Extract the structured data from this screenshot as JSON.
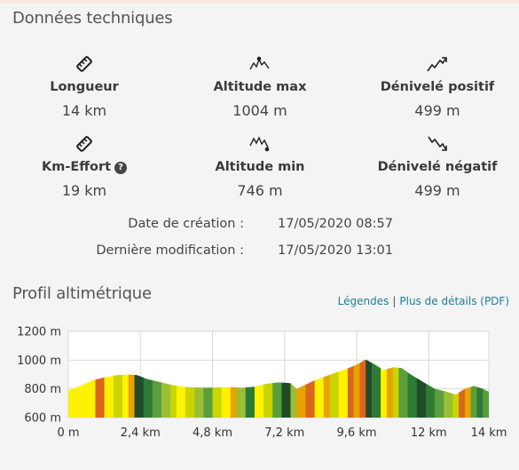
{
  "section_title": "Données techniques",
  "stats": [
    {
      "label": "Longueur",
      "value": "14 km",
      "icon": "ruler-icon"
    },
    {
      "label": "Altitude max",
      "value": "1004 m",
      "icon": "altitude-max-icon"
    },
    {
      "label": "Dénivelé positif",
      "value": "499 m",
      "icon": "elevation-gain-icon"
    },
    {
      "label": "Km-Effort",
      "value": "19 km",
      "icon": "ruler-icon"
    },
    {
      "label": "Altitude min",
      "value": "746 m",
      "icon": "altitude-min-icon"
    },
    {
      "label": "Dénivelé négatif",
      "value": "499 m",
      "icon": "elevation-loss-icon"
    }
  ],
  "help_icon": "?",
  "meta": {
    "created_label": "Date de création :",
    "created_value": "17/05/2020 08:57",
    "modified_label": "Dernière modification :",
    "modified_value": "17/05/2020 13:01"
  },
  "profile_title": "Profil altimétrique",
  "links": {
    "legend": "Légendes",
    "separator": "|",
    "details": "Plus de détails (PDF)"
  },
  "colors": {
    "gridline": "#d8d8d8",
    "slope_palette": [
      "#fff200",
      "#c9d400",
      "#9bbf34",
      "#5b9e3c",
      "#2f7a34",
      "#1f4b28",
      "#e8a300",
      "#d9661c"
    ]
  },
  "chart_data": {
    "type": "area",
    "xlabel": "",
    "ylabel": "",
    "xlim": [
      0,
      14
    ],
    "ylim": [
      600,
      1200
    ],
    "x_ticks": [
      0,
      2.4,
      4.8,
      7.2,
      9.6,
      12,
      14
    ],
    "x_tick_labels": [
      "0 m",
      "2,4 km",
      "4,8 km",
      "7,2 km",
      "9,6 km",
      "12 km",
      "14 km"
    ],
    "y_ticks": [
      600,
      800,
      1000,
      1200
    ],
    "y_tick_labels": [
      "600 m",
      "800 m",
      "1000 m",
      "1200 m"
    ],
    "grid": true,
    "profile": {
      "x": [
        0,
        0.4,
        0.8,
        1.2,
        1.6,
        2.0,
        2.3,
        2.6,
        3.0,
        3.4,
        3.8,
        4.2,
        4.6,
        5.0,
        5.4,
        5.8,
        6.2,
        6.6,
        7.0,
        7.4,
        7.6,
        7.9,
        8.2,
        8.6,
        9.0,
        9.4,
        9.7,
        9.9,
        10.2,
        10.5,
        10.8,
        11.1,
        11.4,
        11.8,
        12.2,
        12.6,
        12.9,
        13.2,
        13.5,
        13.8,
        14.0
      ],
      "y": [
        790,
        820,
        860,
        880,
        895,
        900,
        895,
        870,
        850,
        830,
        815,
        810,
        808,
        810,
        812,
        808,
        815,
        835,
        845,
        840,
        800,
        830,
        860,
        890,
        920,
        950,
        980,
        1004,
        970,
        930,
        950,
        945,
        900,
        850,
        800,
        780,
        760,
        800,
        820,
        800,
        780
      ]
    },
    "slope_segments": [
      {
        "to": 0.5,
        "c": 0
      },
      {
        "to": 0.9,
        "c": 0
      },
      {
        "to": 1.2,
        "c": 7
      },
      {
        "to": 1.5,
        "c": 0
      },
      {
        "to": 1.8,
        "c": 1
      },
      {
        "to": 2.0,
        "c": 0
      },
      {
        "to": 2.2,
        "c": 6
      },
      {
        "to": 2.5,
        "c": 5
      },
      {
        "to": 2.8,
        "c": 4
      },
      {
        "to": 3.1,
        "c": 3
      },
      {
        "to": 3.4,
        "c": 2
      },
      {
        "to": 3.6,
        "c": 1
      },
      {
        "to": 3.9,
        "c": 0
      },
      {
        "to": 4.2,
        "c": 1
      },
      {
        "to": 4.5,
        "c": 2
      },
      {
        "to": 4.8,
        "c": 3
      },
      {
        "to": 5.1,
        "c": 1
      },
      {
        "to": 5.4,
        "c": 0
      },
      {
        "to": 5.6,
        "c": 6
      },
      {
        "to": 5.9,
        "c": 2
      },
      {
        "to": 6.2,
        "c": 4
      },
      {
        "to": 6.5,
        "c": 0
      },
      {
        "to": 6.8,
        "c": 1
      },
      {
        "to": 7.1,
        "c": 3
      },
      {
        "to": 7.4,
        "c": 5
      },
      {
        "to": 7.6,
        "c": 2
      },
      {
        "to": 7.9,
        "c": 6
      },
      {
        "to": 8.2,
        "c": 7
      },
      {
        "to": 8.5,
        "c": 0
      },
      {
        "to": 8.7,
        "c": 6
      },
      {
        "to": 9.0,
        "c": 1
      },
      {
        "to": 9.3,
        "c": 0
      },
      {
        "to": 9.5,
        "c": 7
      },
      {
        "to": 9.7,
        "c": 6
      },
      {
        "to": 9.9,
        "c": 7
      },
      {
        "to": 10.1,
        "c": 5
      },
      {
        "to": 10.4,
        "c": 4
      },
      {
        "to": 10.6,
        "c": 0
      },
      {
        "to": 10.8,
        "c": 6
      },
      {
        "to": 11.0,
        "c": 1
      },
      {
        "to": 11.3,
        "c": 3
      },
      {
        "to": 11.6,
        "c": 4
      },
      {
        "to": 11.9,
        "c": 5
      },
      {
        "to": 12.2,
        "c": 4
      },
      {
        "to": 12.5,
        "c": 3
      },
      {
        "to": 12.8,
        "c": 2
      },
      {
        "to": 13.0,
        "c": 1
      },
      {
        "to": 13.2,
        "c": 7
      },
      {
        "to": 13.4,
        "c": 6
      },
      {
        "to": 13.6,
        "c": 3
      },
      {
        "to": 13.8,
        "c": 4
      },
      {
        "to": 14.0,
        "c": 3
      }
    ]
  }
}
